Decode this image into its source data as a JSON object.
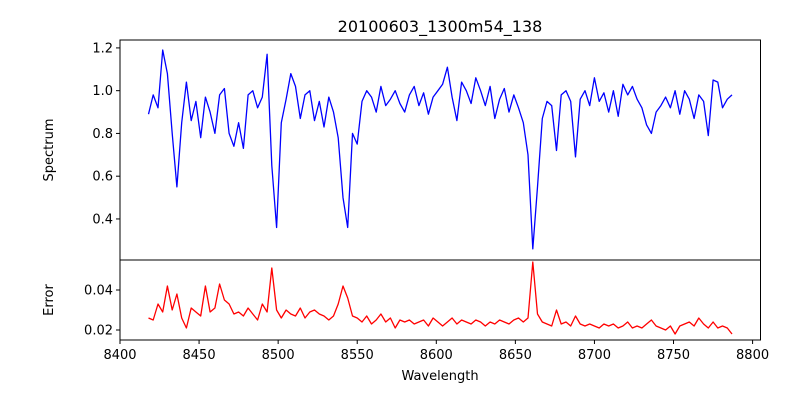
{
  "chart_data": [
    {
      "type": "line",
      "title": "20100603_1300m54_138",
      "xlabel": "",
      "ylabel": "Spectrum",
      "xlim": [
        8400,
        8805
      ],
      "ylim": [
        0.208,
        1.237
      ],
      "xticks": [
        8400,
        8450,
        8500,
        8550,
        8600,
        8650,
        8700,
        8750,
        8800
      ],
      "yticks": [
        "0.4",
        "0.6",
        "0.8",
        "1.0",
        "1.2"
      ],
      "grid": false,
      "series": [
        {
          "name": "Spectrum",
          "color": "#0000ff",
          "x_start": 8418,
          "x_step": 3,
          "values": [
            0.89,
            0.98,
            0.92,
            1.19,
            1.08,
            0.8,
            0.55,
            0.85,
            1.04,
            0.86,
            0.95,
            0.78,
            0.97,
            0.9,
            0.8,
            0.98,
            1.01,
            0.8,
            0.74,
            0.85,
            0.73,
            0.98,
            1.0,
            0.92,
            0.97,
            1.17,
            0.65,
            0.36,
            0.85,
            0.96,
            1.08,
            1.02,
            0.87,
            0.98,
            1.0,
            0.86,
            0.95,
            0.83,
            0.97,
            0.9,
            0.78,
            0.5,
            0.36,
            0.8,
            0.75,
            0.95,
            1.0,
            0.97,
            0.9,
            1.02,
            0.93,
            0.96,
            1.0,
            0.94,
            0.9,
            0.98,
            1.02,
            0.93,
            0.99,
            0.89,
            0.97,
            1.0,
            1.03,
            1.11,
            0.97,
            0.86,
            1.04,
            1.0,
            0.94,
            1.06,
            1.0,
            0.93,
            1.02,
            0.87,
            0.96,
            1.01,
            0.9,
            0.98,
            0.92,
            0.85,
            0.7,
            0.26,
            0.55,
            0.87,
            0.95,
            0.93,
            0.72,
            0.98,
            1.0,
            0.95,
            0.69,
            0.96,
            1.0,
            0.93,
            1.06,
            0.95,
            0.99,
            0.9,
            1.0,
            0.88,
            1.03,
            0.98,
            1.02,
            0.96,
            0.92,
            0.84,
            0.8,
            0.9,
            0.93,
            0.97,
            0.92,
            1.0,
            0.89,
            1.0,
            0.96,
            0.87,
            0.98,
            0.95,
            0.79,
            1.05,
            1.04,
            0.92,
            0.96,
            0.98
          ]
        }
      ]
    },
    {
      "type": "line",
      "title": "",
      "xlabel": "Wavelength",
      "ylabel": "Error",
      "xlim": [
        8400,
        8805
      ],
      "ylim": [
        0.015,
        0.055
      ],
      "xticks": [
        8400,
        8450,
        8500,
        8550,
        8600,
        8650,
        8700,
        8750,
        8800
      ],
      "yticks": [
        "0.02",
        "0.04"
      ],
      "grid": false,
      "series": [
        {
          "name": "Error",
          "color": "#ff0000",
          "x_start": 8418,
          "x_step": 3,
          "values": [
            0.026,
            0.025,
            0.033,
            0.029,
            0.042,
            0.03,
            0.038,
            0.026,
            0.021,
            0.031,
            0.029,
            0.027,
            0.042,
            0.029,
            0.031,
            0.043,
            0.035,
            0.033,
            0.028,
            0.029,
            0.027,
            0.031,
            0.028,
            0.025,
            0.033,
            0.029,
            0.051,
            0.03,
            0.026,
            0.03,
            0.028,
            0.027,
            0.031,
            0.026,
            0.029,
            0.03,
            0.028,
            0.027,
            0.025,
            0.027,
            0.033,
            0.042,
            0.036,
            0.027,
            0.026,
            0.024,
            0.027,
            0.023,
            0.025,
            0.028,
            0.024,
            0.026,
            0.021,
            0.025,
            0.024,
            0.025,
            0.023,
            0.024,
            0.025,
            0.022,
            0.026,
            0.024,
            0.022,
            0.024,
            0.026,
            0.023,
            0.025,
            0.024,
            0.023,
            0.025,
            0.024,
            0.022,
            0.024,
            0.023,
            0.025,
            0.024,
            0.023,
            0.025,
            0.026,
            0.024,
            0.026,
            0.054,
            0.028,
            0.024,
            0.023,
            0.022,
            0.03,
            0.023,
            0.024,
            0.022,
            0.027,
            0.023,
            0.022,
            0.023,
            0.022,
            0.021,
            0.023,
            0.022,
            0.023,
            0.021,
            0.022,
            0.024,
            0.021,
            0.022,
            0.021,
            0.023,
            0.025,
            0.022,
            0.021,
            0.02,
            0.022,
            0.018,
            0.022,
            0.023,
            0.024,
            0.022,
            0.026,
            0.023,
            0.021,
            0.024,
            0.021,
            0.022,
            0.021,
            0.018
          ]
        }
      ]
    }
  ]
}
